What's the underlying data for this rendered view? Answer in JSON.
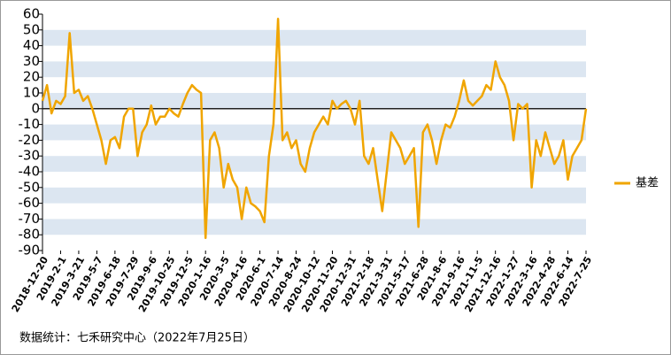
{
  "chart_data": {
    "type": "line",
    "categories": [
      "2018-12-20",
      null,
      null,
      null,
      "2019-2-1",
      null,
      null,
      null,
      "2019-3-21",
      null,
      null,
      null,
      "2019-5-7",
      null,
      null,
      null,
      "2019-6-18",
      null,
      null,
      null,
      "2019-7-29",
      null,
      null,
      null,
      "2019-9-6",
      null,
      null,
      null,
      "2019-10-25",
      null,
      null,
      null,
      "2019-12-5",
      null,
      null,
      null,
      "2020-1-16",
      null,
      null,
      null,
      "2020-3-5",
      null,
      null,
      null,
      "2020-4-16",
      null,
      null,
      null,
      "2020-6-1",
      null,
      null,
      null,
      "2020-7-14",
      null,
      null,
      null,
      "2020-8-24",
      null,
      null,
      null,
      "2020-10-12",
      null,
      null,
      null,
      "2020-11-20",
      null,
      null,
      null,
      "2020-12-31",
      null,
      null,
      null,
      "2021-2-18",
      null,
      null,
      null,
      "2021-3-31",
      null,
      null,
      null,
      "2021-5-17",
      null,
      null,
      null,
      "2021-6-28",
      null,
      null,
      null,
      "2021-8-6",
      null,
      null,
      null,
      "2021-9-16",
      null,
      null,
      null,
      "2021-11-5",
      null,
      null,
      null,
      "2021-12-16",
      null,
      null,
      null,
      "2022-1-27",
      null,
      null,
      null,
      "2022-3-16",
      null,
      null,
      null,
      "2022-4-28",
      null,
      null,
      null,
      "2022-6-14",
      null,
      null,
      null,
      "2022-7-25"
    ],
    "series": [
      {
        "name": "基差",
        "color": "#f0a500",
        "values": [
          5,
          15,
          -3,
          5,
          3,
          8,
          48,
          10,
          12,
          5,
          8,
          0,
          -10,
          -20,
          -35,
          -20,
          -18,
          -25,
          -5,
          0,
          0,
          -30,
          -15,
          -10,
          2,
          -10,
          -5,
          -5,
          0,
          -3,
          -5,
          3,
          10,
          15,
          12,
          10,
          -82,
          -20,
          -15,
          -25,
          -50,
          -35,
          -45,
          -50,
          -70,
          -50,
          -60,
          -62,
          -65,
          -72,
          -30,
          -10,
          57,
          -20,
          -15,
          -25,
          -20,
          -35,
          -40,
          -25,
          -15,
          -10,
          -5,
          -10,
          5,
          0,
          3,
          5,
          0,
          -10,
          5,
          -30,
          -35,
          -25,
          -45,
          -65,
          -40,
          -15,
          -20,
          -25,
          -35,
          -30,
          -25,
          -75,
          -15,
          -10,
          -20,
          -35,
          -20,
          -10,
          -12,
          -5,
          5,
          18,
          5,
          2,
          5,
          8,
          15,
          12,
          30,
          20,
          15,
          5,
          -20,
          3,
          0,
          3,
          -50,
          -20,
          -30,
          -15,
          -25,
          -35,
          -30,
          -20,
          -45,
          -30,
          -25,
          -20,
          0
        ]
      }
    ],
    "ylim": [
      -90,
      60
    ],
    "yticks": [
      60,
      50,
      40,
      30,
      20,
      10,
      0,
      -10,
      -20,
      -30,
      -40,
      -50,
      -60,
      -70,
      -80,
      -90
    ],
    "band_color": "#dce6f1",
    "legend": "right",
    "source": "数据统计：七禾研究中心（2022年7月25日）"
  }
}
